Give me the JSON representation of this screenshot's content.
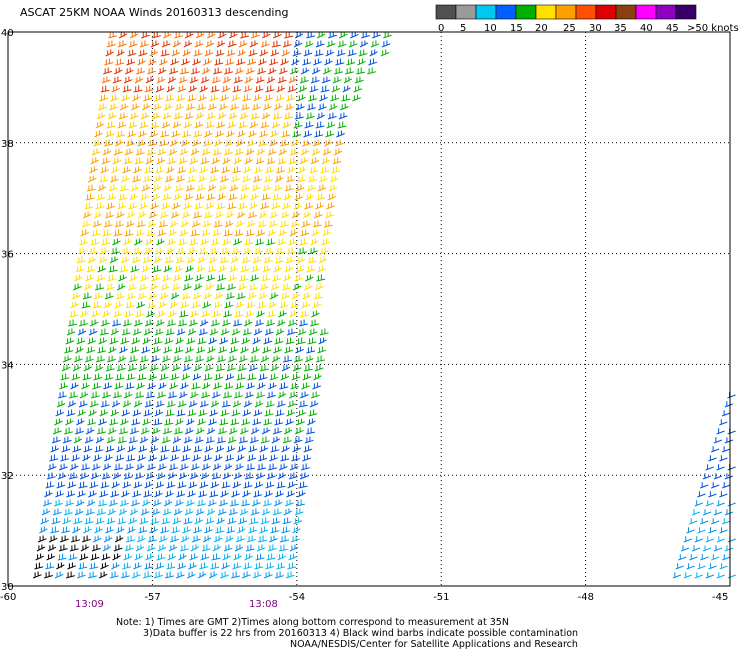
{
  "title": "ASCAT 25KM NOAA Winds 20160313 descending",
  "legend": {
    "ticks": [
      "0",
      "5",
      "10",
      "15",
      "20",
      "25",
      "30",
      "35",
      "40",
      "45",
      ">50 knots"
    ],
    "colors": [
      "#505050",
      "#9a9a9a",
      "#00c8f0",
      "#0060ff",
      "#00b000",
      "#ffe000",
      "#ffa000",
      "#ff5000",
      "#e00000",
      "#8a4010",
      "#ff00ff",
      "#9000c0",
      "#3a006a"
    ]
  },
  "axes": {
    "lat_labels": [
      "40",
      "38",
      "36",
      "34",
      "32",
      "30"
    ],
    "lon_labels": [
      "-60",
      "-57",
      "-54",
      "-51",
      "-48",
      "-45"
    ],
    "lat_range": [
      30,
      40
    ],
    "lon_range": [
      -60,
      -45
    ]
  },
  "times": [
    "13:09",
    "13:08"
  ],
  "notes": [
    "Note: 1) Times are GMT 2)Times along bottom correspond to measurement at 35N",
    "3)Data buffer is 22 hrs from 20160313 4) Black wind barbs indicate possible contamination",
    "NOAA/NESDIS/Center for Satellite Applications and Research"
  ]
}
